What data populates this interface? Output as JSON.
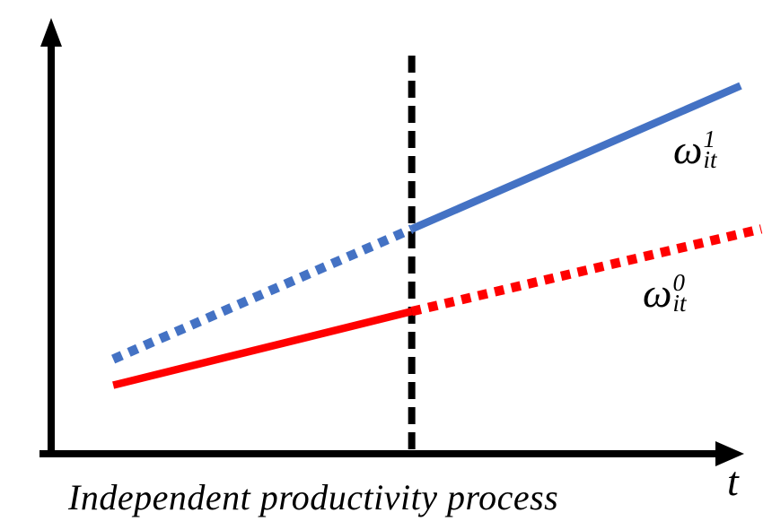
{
  "figure": {
    "caption": "Independent productivity process",
    "x_axis_label": "t"
  },
  "labels": {
    "omega1": {
      "base": "ω",
      "sup": "1",
      "sub": "it"
    },
    "omega0": {
      "base": "ω",
      "sup": "0",
      "sub": "it"
    }
  },
  "colors": {
    "blue": "#4472C4",
    "red": "#FF0000",
    "axis": "#000000"
  },
  "chart_data": {
    "type": "line",
    "title": "Independent productivity process",
    "xlabel": "t",
    "ylabel": "",
    "x_range_norm": [
      0,
      1
    ],
    "y_range_norm": [
      0,
      1
    ],
    "grid": false,
    "axis_ticks": "none",
    "legend_position": "none",
    "treatment_line": {
      "orientation": "vertical",
      "style": "dashed",
      "x": 0.523,
      "color": "#000000"
    },
    "series": [
      {
        "name": "ω_it^1",
        "color": "#4472C4",
        "segments": [
          {
            "style": "dotted",
            "x": [
              0.09,
              0.523
            ],
            "y": [
              0.22,
              0.52
            ]
          },
          {
            "style": "solid",
            "x": [
              0.523,
              1.0
            ],
            "y": [
              0.52,
              0.85
            ]
          }
        ]
      },
      {
        "name": "ω_it^0",
        "color": "#FF0000",
        "segments": [
          {
            "style": "solid",
            "x": [
              0.09,
              0.523
            ],
            "y": [
              0.16,
              0.33
            ]
          },
          {
            "style": "dotted",
            "x": [
              0.523,
              1.03
            ],
            "y": [
              0.33,
              0.52
            ]
          }
        ]
      }
    ],
    "annotations": [
      {
        "text": "ω_it^1",
        "x": 0.93,
        "y": 0.7
      },
      {
        "text": "ω_it^0",
        "x": 0.88,
        "y": 0.37
      }
    ]
  }
}
